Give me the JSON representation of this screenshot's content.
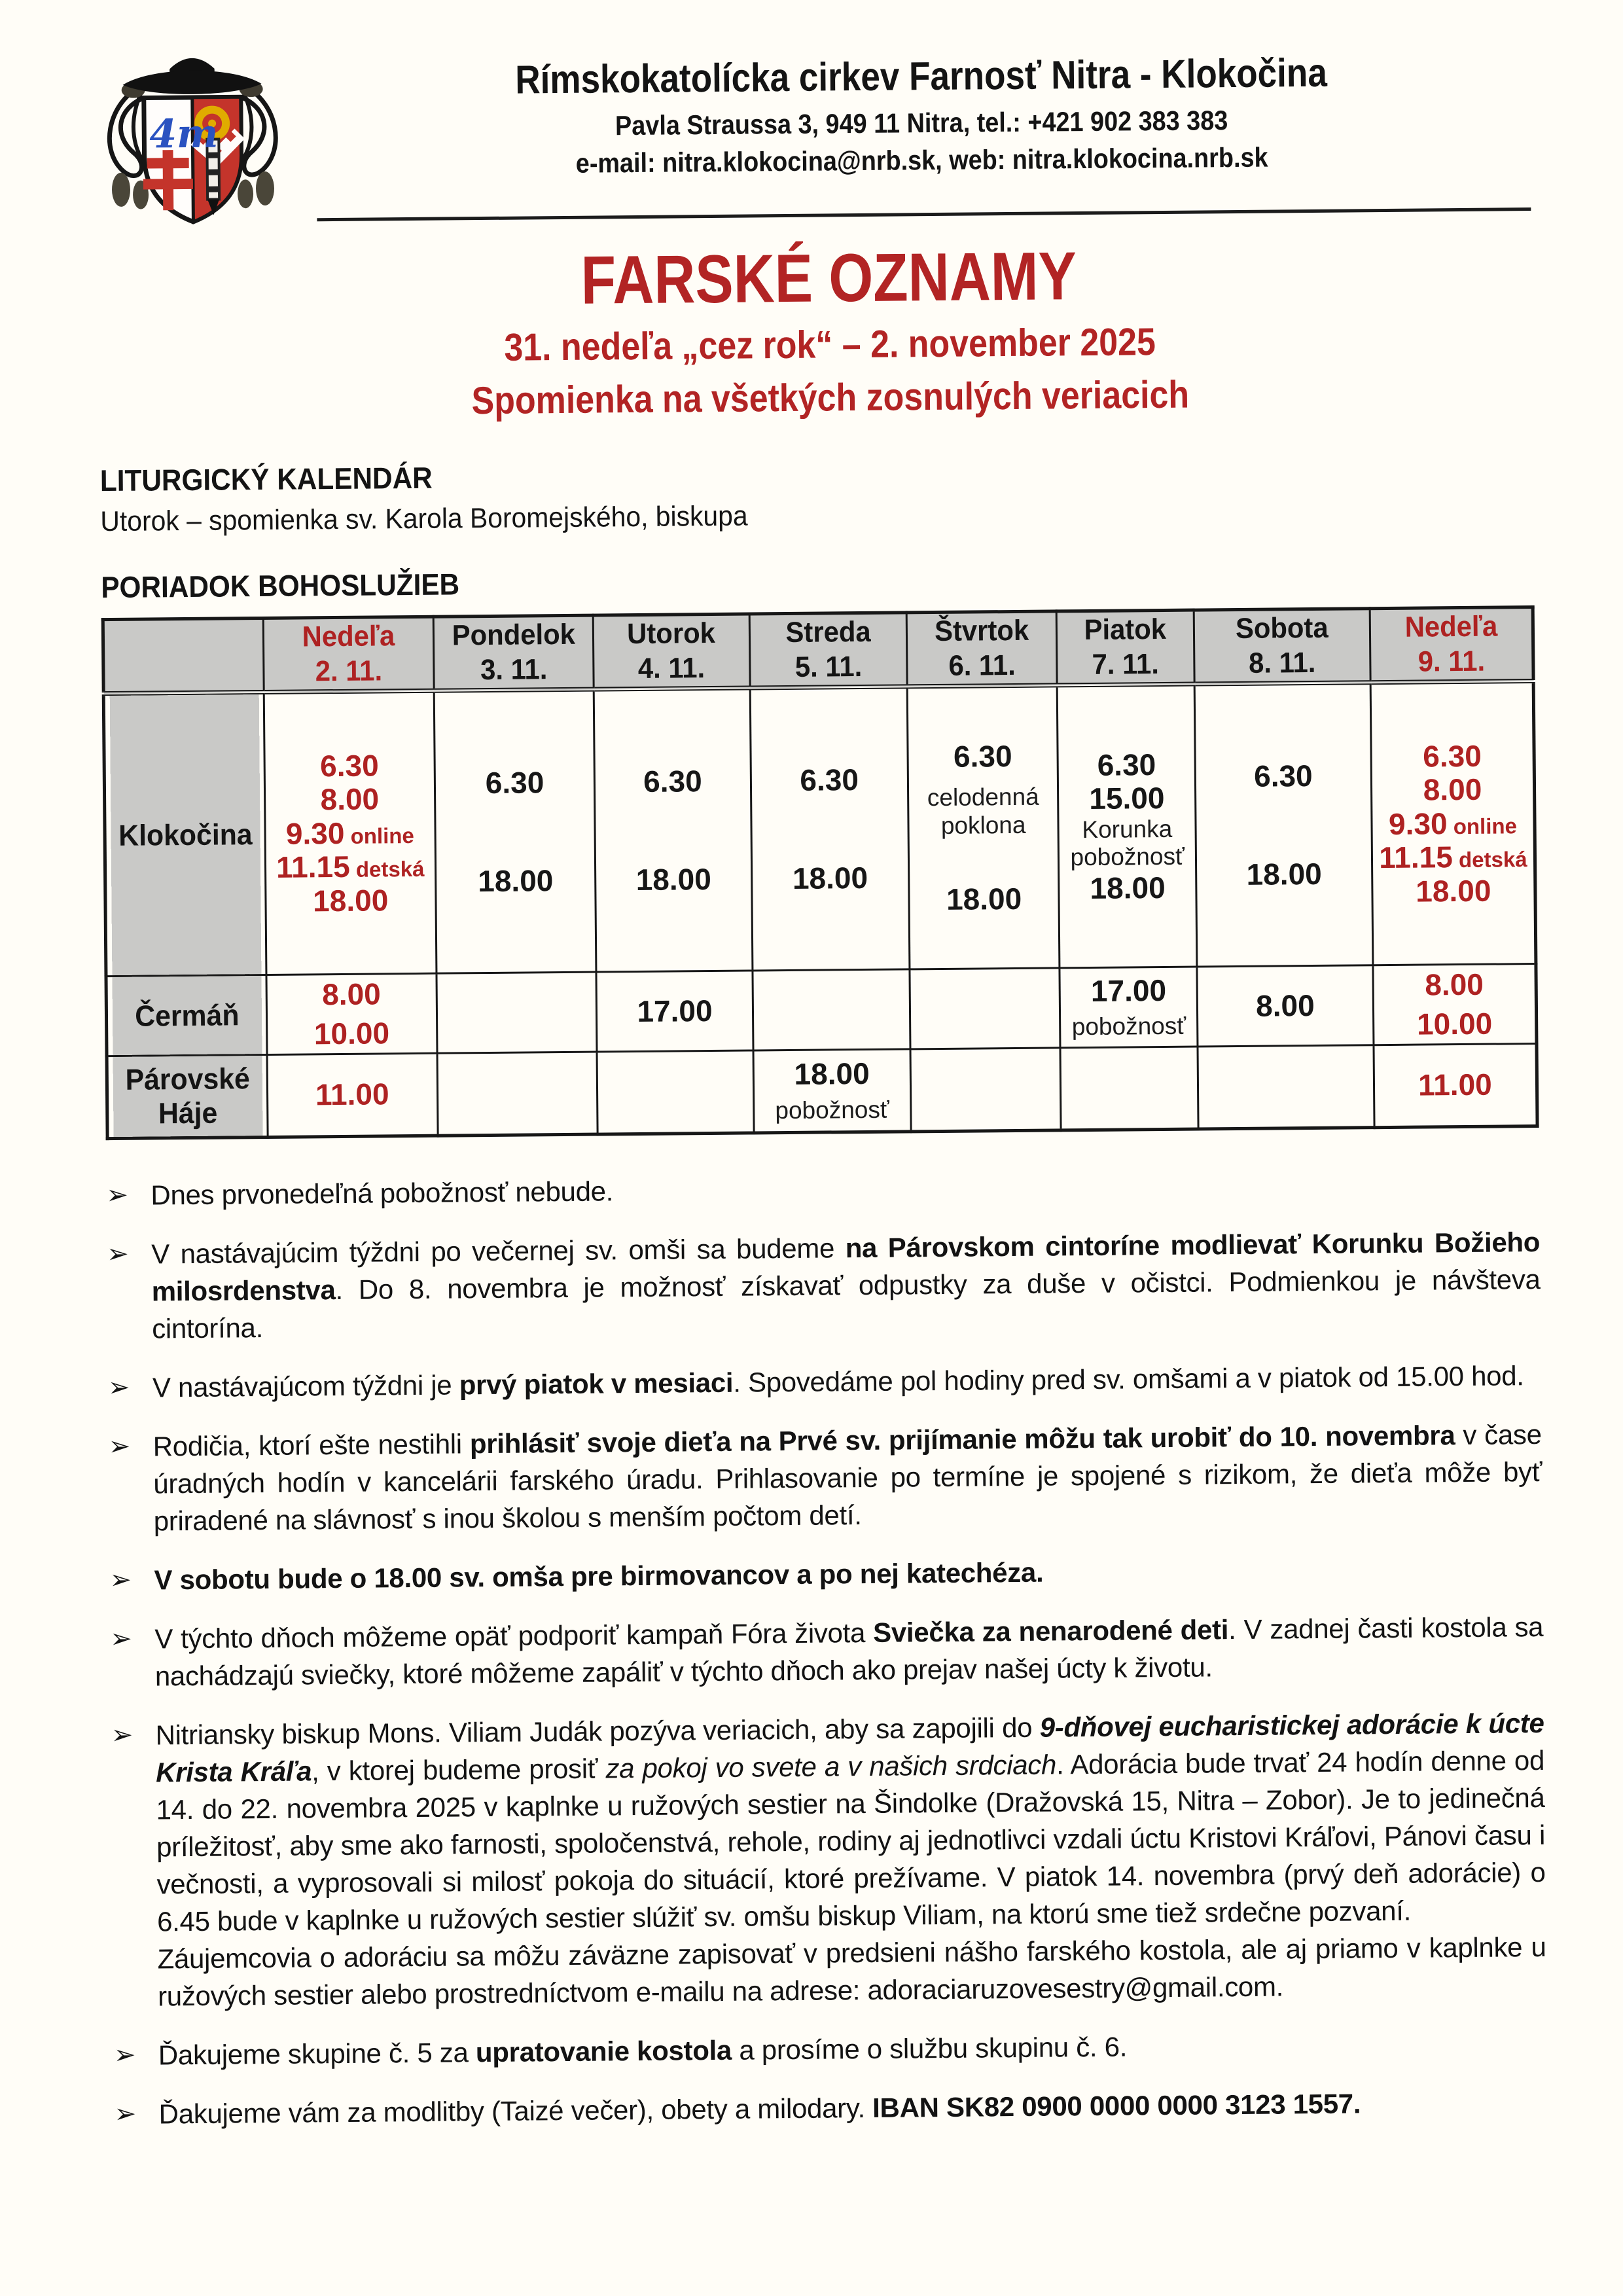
{
  "header": {
    "parish_name": "Rímskokatolícka cirkev Farnosť Nitra - Klokočina",
    "address_line": "Pavla Straussa 3, 949 11 Nitra, tel.: +421 902 383 383",
    "contact_line": "e-mail: nitra.klokocina@nrb.sk, web: nitra.klokocina.nrb.sk",
    "logo": "bishop-coat-of-arms"
  },
  "title": {
    "main": "FARSKÉ OZNAMY",
    "subtitle_date": "31. nedeľa „cez rok“ – 2. november 2025",
    "subtitle_feast": "Spomienka na všetkých zosnulých veriacich"
  },
  "liturgical_calendar": {
    "heading": "LITURGICKÝ KALENDÁR",
    "entries": [
      "Utorok – spomienka sv. Karola Boromejského, biskupa"
    ]
  },
  "schedule": {
    "heading": "PORIADOK BOHOSLUŽIEB",
    "columns": [
      {
        "day": "",
        "date": ""
      },
      {
        "day": "Nedeľa",
        "date": "2. 11.",
        "red": true
      },
      {
        "day": "Pondelok",
        "date": "3. 11."
      },
      {
        "day": "Utorok",
        "date": "4. 11."
      },
      {
        "day": "Streda",
        "date": "5. 11."
      },
      {
        "day": "Štvrtok",
        "date": "6. 11."
      },
      {
        "day": "Piatok",
        "date": "7. 11."
      },
      {
        "day": "Sobota",
        "date": "8. 11."
      },
      {
        "day": "Nedeľa",
        "date": "9. 11.",
        "red": true
      }
    ],
    "rows": [
      {
        "place": "Klokočina",
        "cells": [
          {
            "layout": "spread",
            "lines": [
              {
                "time": "6.30",
                "red": true
              },
              {
                "time": "8.00",
                "red": true
              },
              {
                "time": "9.30",
                "suffix": "online",
                "red": true
              },
              {
                "time": "11.15",
                "suffix": "detská",
                "red": true
              },
              {
                "time": "18.00",
                "red": true
              }
            ]
          },
          {
            "layout": "two",
            "lines": [
              {
                "time": "6.30"
              },
              {
                "time": "18.00"
              }
            ]
          },
          {
            "layout": "two",
            "lines": [
              {
                "time": "6.30"
              },
              {
                "time": "18.00"
              }
            ]
          },
          {
            "layout": "two",
            "lines": [
              {
                "time": "6.30"
              },
              {
                "time": "18.00"
              }
            ]
          },
          {
            "layout": "thu",
            "lines": [
              {
                "time": "6.30"
              },
              {
                "note": "celodenná poklona"
              },
              {
                "time": "18.00"
              }
            ]
          },
          {
            "layout": "spread",
            "lines": [
              {
                "time": "6.30"
              },
              {
                "time": "15.00"
              },
              {
                "note": "Korunka"
              },
              {
                "note": "pobožnosť"
              },
              {
                "time": "18.00"
              }
            ]
          },
          {
            "layout": "two",
            "lines": [
              {
                "time": "6.30"
              },
              {
                "time": "18.00"
              }
            ]
          },
          {
            "layout": "spread",
            "lines": [
              {
                "time": "6.30",
                "red": true
              },
              {
                "time": "8.00",
                "red": true
              },
              {
                "time": "9.30",
                "suffix": "online",
                "red": true
              },
              {
                "time": "11.15",
                "suffix": "detská",
                "red": true
              },
              {
                "time": "18.00",
                "red": true
              }
            ]
          }
        ]
      },
      {
        "place": "Čermáň",
        "cells": [
          {
            "layout": "tight",
            "lines": [
              {
                "time": "8.00",
                "red": true
              },
              {
                "time": "10.00",
                "red": true
              }
            ]
          },
          {
            "layout": "tight",
            "lines": []
          },
          {
            "layout": "tight",
            "lines": [
              {
                "time": "17.00"
              }
            ]
          },
          {
            "layout": "tight",
            "lines": []
          },
          {
            "layout": "tight",
            "lines": []
          },
          {
            "layout": "tight",
            "lines": [
              {
                "time": "17.00"
              },
              {
                "note": "pobožnosť"
              }
            ]
          },
          {
            "layout": "tight",
            "lines": [
              {
                "time": "8.00"
              }
            ]
          },
          {
            "layout": "tight",
            "lines": [
              {
                "time": "8.00",
                "red": true
              },
              {
                "time": "10.00",
                "red": true
              }
            ]
          }
        ]
      },
      {
        "place": "Párovské Háje",
        "cells": [
          {
            "layout": "tight",
            "lines": [
              {
                "time": "11.00",
                "red": true
              }
            ]
          },
          {
            "layout": "tight",
            "lines": []
          },
          {
            "layout": "tight",
            "lines": []
          },
          {
            "layout": "tight",
            "lines": [
              {
                "time": "18.00"
              },
              {
                "note": "pobožnosť"
              }
            ]
          },
          {
            "layout": "tight",
            "lines": []
          },
          {
            "layout": "tight",
            "lines": []
          },
          {
            "layout": "tight",
            "lines": []
          },
          {
            "layout": "tight",
            "lines": [
              {
                "time": "11.00",
                "red": true
              }
            ]
          }
        ]
      }
    ]
  },
  "bullet_glyph": "➢",
  "announcements": [
    [
      {
        "t": "Dnes prvonedeľná pobožnosť nebude."
      }
    ],
    [
      {
        "t": "V nastávajúcim týždni po večernej sv. omši sa budeme "
      },
      {
        "t": "na Párovskom cintoríne modlievať Korunku Božieho milosrdenstva",
        "b": true
      },
      {
        "t": ". Do 8. novembra je možnosť získavať odpustky za duše v očistci. Podmienkou je návšteva cintorína."
      }
    ],
    [
      {
        "t": "V nastávajúcom týždni je "
      },
      {
        "t": "prvý piatok v mesiaci",
        "b": true
      },
      {
        "t": ". Spovedáme pol hodiny pred sv. omšami a v piatok od 15.00 hod."
      }
    ],
    [
      {
        "t": "Rodičia, ktorí ešte nestihli "
      },
      {
        "t": "prihlásiť svoje dieťa na Prvé sv. prijímanie môžu tak urobiť do 10. novembra",
        "b": true
      },
      {
        "t": " v čase úradných hodín v kancelárii farského úradu. Prihlasovanie po termíne je spojené s rizikom, že dieťa môže byť priradené na slávnosť s inou školou s menším počtom detí."
      }
    ],
    [
      {
        "t": "V sobotu bude o 18.00 sv. omša pre birmovancov a po nej katechéza.",
        "b": true
      }
    ],
    [
      {
        "t": "V týchto dňoch môžeme opäť podporiť kampaň Fóra života "
      },
      {
        "t": "Sviečka za nenarodené deti",
        "b": true
      },
      {
        "t": ". V zadnej časti kostola sa nachádzajú sviečky, ktoré môžeme zapáliť v týchto dňoch ako prejav našej úcty k životu."
      }
    ],
    [
      {
        "t": "Nitriansky biskup Mons. Viliam Judák pozýva veriacich, aby sa zapojili do "
      },
      {
        "t": "9-dňovej eucharistickej adorácie k úcte Krista Kráľa",
        "b": true,
        "i": true
      },
      {
        "t": ", v ktorej budeme prosiť "
      },
      {
        "t": "za pokoj vo svete a v našich srdciach",
        "i": true
      },
      {
        "t": ". Adorácia bude trvať 24 hodín denne od 14. do 22. novembra 2025 v kaplnke u ružových sestier na Šindolke (Dražovská 15, Nitra – Zobor). Je to jedinečná príležitosť, aby sme ako farnosti, spoločenstvá, rehole, rodiny aj jednotlivci vzdali úctu Kristovi Kráľovi, Pánovi času i večnosti, a vyprosovali si milosť pokoja do situácií, ktoré prežívame. V piatok 14. novembra (prvý deň adorácie) o 6.45 bude v kaplnke u ružových sestier slúžiť sv. omšu biskup Viliam, na ktorú sme tiež srdečne pozvaní."
      },
      {
        "br": true
      },
      {
        "t": "Záujemcovia o adoráciu sa môžu záväzne zapisovať v predsieni nášho farského kostola, ale aj priamo v kaplnke u ružových sestier alebo prostredníctvom e-mailu na adrese: adoraciaruzovesestry@gmail.com."
      }
    ],
    [
      {
        "t": "Ďakujeme skupine č. 5 za "
      },
      {
        "t": "upratovanie kostola",
        "b": true
      },
      {
        "t": " a prosíme o službu skupinu č. 6."
      }
    ],
    [
      {
        "t": "Ďakujeme vám za modlitby (Taizé večer), obety a milodary. "
      },
      {
        "t": "IBAN SK82 0900 0000 0000 3123 1557.",
        "b": true
      }
    ]
  ],
  "colors": {
    "accent_red": "#b22424",
    "time_red": "#ae2222",
    "table_header_bg": "#c9c9c7"
  }
}
